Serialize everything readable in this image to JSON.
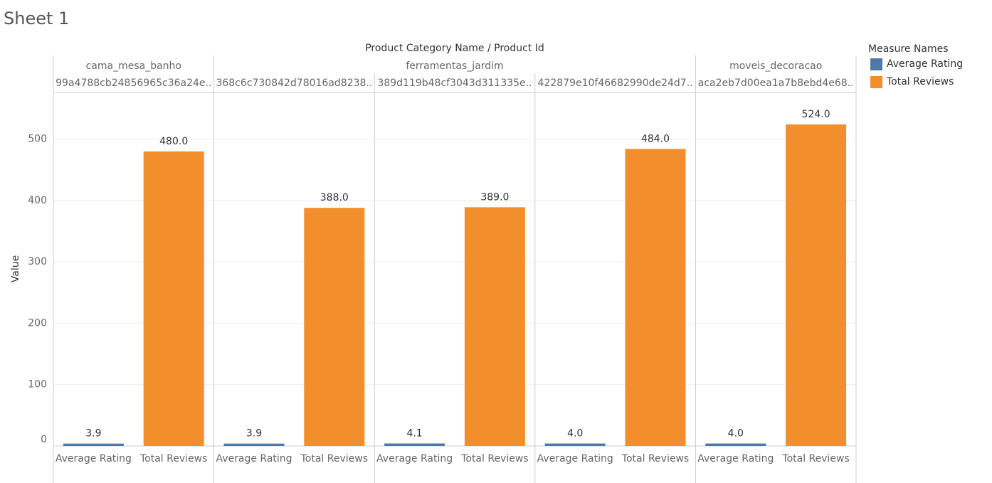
{
  "title": "Sheet 1",
  "chart_data": {
    "type": "grouped_bar",
    "x_label": "Product Category Name  /  Product Id",
    "y_label": "Value",
    "category_groups": [
      "cama_mesa_banho",
      "ferramentas_jardim",
      "ferramentas_jardim",
      "ferramentas_jardim",
      "moveis_decoracao"
    ],
    "categories": [
      "99a4788cb24856965c36a24e..",
      "368c6c730842d78016ad8238..",
      "389d119b48cf3043d311335e..",
      "422879e10f46682990de24d7..",
      "aca2eb7d00ea1a7b8ebd4e68.."
    ],
    "series": [
      {
        "name": "Average Rating",
        "color": "#4e79a7",
        "values": [
          3.9,
          3.9,
          4.1,
          4.0,
          4.0
        ],
        "value_labels": [
          "3.9",
          "3.9",
          "4.1",
          "4.0",
          "4.0"
        ]
      },
      {
        "name": "Total Reviews",
        "color": "#f28e2b",
        "values": [
          480,
          388,
          389,
          484,
          524
        ],
        "value_labels": [
          "480.0",
          "388.0",
          "389.0",
          "484.0",
          "524.0"
        ]
      }
    ],
    "ylim": [
      0,
      576
    ],
    "yticks": [
      0,
      100,
      200,
      300,
      400,
      500
    ],
    "grid": true,
    "legend_title": "Measure Names",
    "legend": "top-right"
  }
}
